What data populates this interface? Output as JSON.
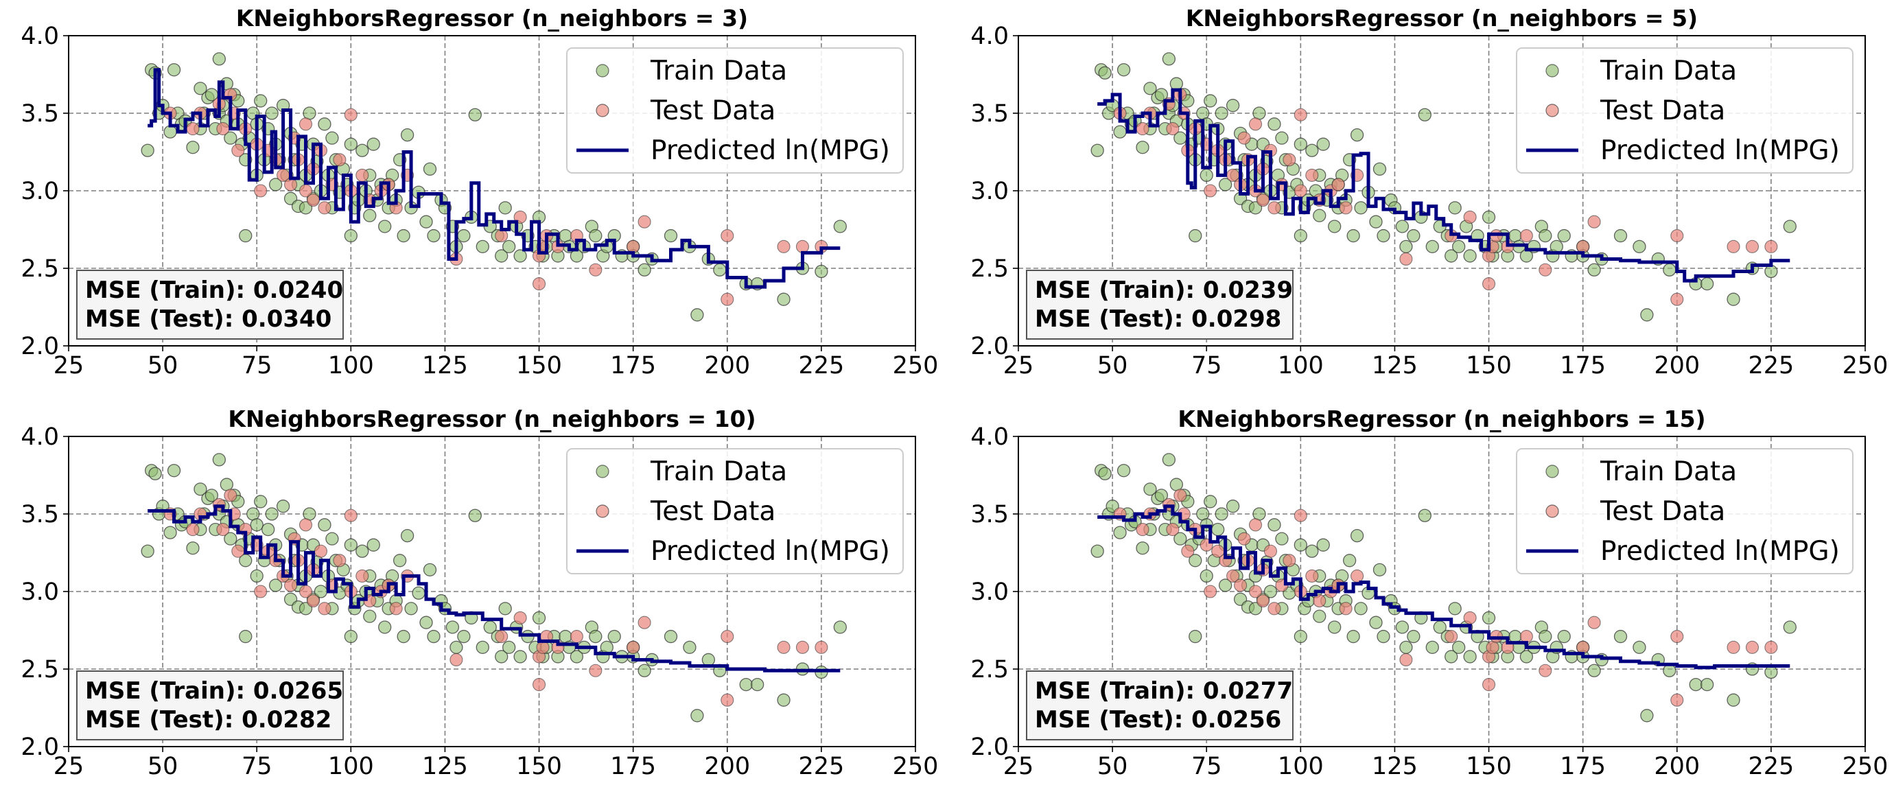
{
  "colors": {
    "train": "#8fbc6f",
    "test": "#e8857a",
    "prediction": "#000080",
    "grid": "#7f7f7f"
  },
  "legend_labels": {
    "train": "Train Data",
    "test": "Test Data",
    "prediction": "Predicted ln(MPG)"
  },
  "shared": {
    "type": "scatter+line",
    "xlim": [
      25,
      250
    ],
    "ylim": [
      2.0,
      4.0
    ],
    "xticks": [
      "25",
      "50",
      "75",
      "100",
      "125",
      "150",
      "175",
      "200",
      "225",
      "250"
    ],
    "yticks": [
      "2.0",
      "2.5",
      "3.0",
      "3.5",
      "4.0"
    ],
    "grid": true,
    "grid_style": "dashed",
    "legend_position": "top-right",
    "stats_position": "bottom-left"
  },
  "train_points": [
    [
      46,
      3.26
    ],
    [
      47,
      3.78
    ],
    [
      48,
      3.76
    ],
    [
      49,
      3.5
    ],
    [
      50,
      3.55
    ],
    [
      52,
      3.38
    ],
    [
      53,
      3.78
    ],
    [
      54,
      3.5
    ],
    [
      55,
      3.43
    ],
    [
      56,
      3.45
    ],
    [
      58,
      3.28
    ],
    [
      60,
      3.66
    ],
    [
      60,
      3.4
    ],
    [
      61,
      3.5
    ],
    [
      62,
      3.6
    ],
    [
      63,
      3.62
    ],
    [
      64,
      3.4
    ],
    [
      65,
      3.85
    ],
    [
      65,
      3.5
    ],
    [
      66,
      3.55
    ],
    [
      67,
      3.69
    ],
    [
      67,
      3.45
    ],
    [
      68,
      3.34
    ],
    [
      69,
      3.62
    ],
    [
      70,
      3.58
    ],
    [
      70,
      3.43
    ],
    [
      71,
      3.3
    ],
    [
      72,
      3.2
    ],
    [
      72,
      2.71
    ],
    [
      73,
      3.34
    ],
    [
      74,
      3.5
    ],
    [
      75,
      3.43
    ],
    [
      75,
      3.1
    ],
    [
      76,
      3.58
    ],
    [
      77,
      3.2
    ],
    [
      78,
      3.4
    ],
    [
      79,
      3.5
    ],
    [
      80,
      3.3
    ],
    [
      80,
      3.04
    ],
    [
      81,
      3.2
    ],
    [
      82,
      3.55
    ],
    [
      83,
      3.1
    ],
    [
      84,
      3.37
    ],
    [
      84,
      2.95
    ],
    [
      85,
      3.2
    ],
    [
      86,
      3.04
    ],
    [
      86,
      2.9
    ],
    [
      87,
      3.3
    ],
    [
      88,
      3.1
    ],
    [
      88,
      2.89
    ],
    [
      89,
      3.5
    ],
    [
      90,
      3.3
    ],
    [
      90,
      2.95
    ],
    [
      91,
      3.19
    ],
    [
      92,
      3.0
    ],
    [
      93,
      3.43
    ],
    [
      94,
      3.1
    ],
    [
      95,
      3.34
    ],
    [
      95,
      2.89
    ],
    [
      96,
      3.2
    ],
    [
      97,
      2.99
    ],
    [
      98,
      3.14
    ],
    [
      99,
      3.04
    ],
    [
      100,
      2.71
    ],
    [
      100,
      3.3
    ],
    [
      101,
      2.89
    ],
    [
      102,
      2.94
    ],
    [
      103,
      3.26
    ],
    [
      104,
      3.0
    ],
    [
      105,
      3.1
    ],
    [
      105,
      2.84
    ],
    [
      106,
      3.3
    ],
    [
      107,
      2.94
    ],
    [
      108,
      3.04
    ],
    [
      109,
      2.77
    ],
    [
      110,
      3.04
    ],
    [
      110,
      2.89
    ],
    [
      111,
      3.1
    ],
    [
      112,
      2.94
    ],
    [
      113,
      3.2
    ],
    [
      114,
      2.71
    ],
    [
      115,
      3.36
    ],
    [
      116,
      2.89
    ],
    [
      118,
      2.99
    ],
    [
      120,
      2.8
    ],
    [
      121,
      3.14
    ],
    [
      122,
      2.71
    ],
    [
      124,
      2.94
    ],
    [
      125,
      2.89
    ],
    [
      127,
      2.77
    ],
    [
      128,
      2.64
    ],
    [
      130,
      2.71
    ],
    [
      132,
      2.83
    ],
    [
      133,
      3.49
    ],
    [
      135,
      2.64
    ],
    [
      137,
      2.77
    ],
    [
      139,
      2.71
    ],
    [
      140,
      2.58
    ],
    [
      141,
      2.89
    ],
    [
      142,
      2.64
    ],
    [
      144,
      2.77
    ],
    [
      145,
      2.58
    ],
    [
      147,
      2.71
    ],
    [
      149,
      2.64
    ],
    [
      150,
      2.83
    ],
    [
      151,
      2.58
    ],
    [
      152,
      2.64
    ],
    [
      154,
      2.71
    ],
    [
      155,
      2.58
    ],
    [
      157,
      2.71
    ],
    [
      158,
      2.64
    ],
    [
      160,
      2.58
    ],
    [
      162,
      2.64
    ],
    [
      164,
      2.77
    ],
    [
      165,
      2.71
    ],
    [
      167,
      2.58
    ],
    [
      168,
      2.64
    ],
    [
      170,
      2.71
    ],
    [
      172,
      2.58
    ],
    [
      175,
      2.64
    ],
    [
      175,
      2.58
    ],
    [
      178,
      2.49
    ],
    [
      180,
      2.56
    ],
    [
      185,
      2.71
    ],
    [
      190,
      2.64
    ],
    [
      192,
      2.2
    ],
    [
      195,
      2.56
    ],
    [
      198,
      2.49
    ],
    [
      205,
      2.4
    ],
    [
      208,
      2.4
    ],
    [
      215,
      2.3
    ],
    [
      220,
      2.5
    ],
    [
      225,
      2.48
    ],
    [
      230,
      2.77
    ]
  ],
  "test_points": [
    [
      52,
      3.5
    ],
    [
      58,
      3.4
    ],
    [
      60,
      3.5
    ],
    [
      65,
      3.56
    ],
    [
      66,
      3.4
    ],
    [
      68,
      3.62
    ],
    [
      69,
      3.5
    ],
    [
      70,
      3.26
    ],
    [
      72,
      3.4
    ],
    [
      75,
      3.3
    ],
    [
      76,
      3.0
    ],
    [
      78,
      3.26
    ],
    [
      80,
      3.2
    ],
    [
      82,
      3.1
    ],
    [
      84,
      3.04
    ],
    [
      85,
      3.34
    ],
    [
      86,
      3.2
    ],
    [
      88,
      3.43
    ],
    [
      88,
      3.0
    ],
    [
      90,
      3.14
    ],
    [
      90,
      2.94
    ],
    [
      92,
      3.26
    ],
    [
      93,
      2.89
    ],
    [
      95,
      3.04
    ],
    [
      97,
      3.2
    ],
    [
      100,
      3.49
    ],
    [
      100,
      3.0
    ],
    [
      103,
      3.1
    ],
    [
      105,
      2.94
    ],
    [
      108,
      3.0
    ],
    [
      110,
      3.04
    ],
    [
      112,
      2.89
    ],
    [
      115,
      3.1
    ],
    [
      128,
      2.56
    ],
    [
      140,
      2.71
    ],
    [
      145,
      2.83
    ],
    [
      150,
      2.4
    ],
    [
      150,
      2.58
    ],
    [
      151,
      2.64
    ],
    [
      152,
      2.71
    ],
    [
      155,
      2.64
    ],
    [
      160,
      2.71
    ],
    [
      165,
      2.49
    ],
    [
      175,
      2.64
    ],
    [
      178,
      2.8
    ],
    [
      200,
      2.3
    ],
    [
      200,
      2.71
    ],
    [
      215,
      2.64
    ],
    [
      220,
      2.64
    ],
    [
      225,
      2.64
    ]
  ],
  "chart_data": [
    {
      "type": "scatter+line",
      "title": "KNeighborsRegressor (n_neighbors = 3)",
      "series": [
        {
          "name": "Train Data"
        },
        {
          "name": "Test Data"
        },
        {
          "name": "Predicted ln(MPG)",
          "x": [
            46,
            47,
            48,
            49,
            50,
            52,
            54,
            56,
            58,
            60,
            62,
            64,
            65,
            66,
            68,
            70,
            72,
            73,
            75,
            77,
            79,
            80,
            82,
            84,
            86,
            88,
            90,
            92,
            94,
            96,
            98,
            100,
            102,
            104,
            106,
            108,
            110,
            112,
            114,
            116,
            118,
            120,
            122,
            124,
            126,
            128,
            130,
            132,
            134,
            136,
            138,
            140,
            142,
            144,
            146,
            148,
            150,
            152,
            155,
            158,
            160,
            162,
            165,
            168,
            170,
            175,
            180,
            185,
            188,
            190,
            195,
            200,
            205,
            210,
            215,
            220,
            225,
            230
          ],
          "values": [
            3.42,
            3.45,
            3.78,
            3.55,
            3.5,
            3.42,
            3.38,
            3.46,
            3.5,
            3.42,
            3.52,
            3.48,
            3.7,
            3.6,
            3.4,
            3.52,
            3.3,
            3.07,
            3.48,
            3.12,
            3.38,
            3.15,
            3.52,
            3.08,
            3.35,
            3.05,
            3.3,
            2.95,
            3.15,
            2.88,
            3.1,
            2.8,
            3.05,
            2.9,
            2.95,
            3.05,
            2.92,
            3.0,
            3.25,
            2.9,
            2.98,
            2.98,
            2.98,
            2.92,
            2.56,
            2.8,
            2.82,
            3.05,
            2.78,
            2.85,
            2.8,
            2.75,
            2.8,
            2.72,
            2.62,
            2.8,
            2.6,
            2.72,
            2.65,
            2.62,
            2.68,
            2.62,
            2.65,
            2.68,
            2.6,
            2.58,
            2.55,
            2.62,
            2.68,
            2.64,
            2.54,
            2.44,
            2.38,
            2.42,
            2.5,
            2.6,
            2.63,
            2.63
          ]
        }
      ],
      "stats": [
        "MSE (Train): 0.0240",
        "MSE (Test): 0.0340"
      ]
    },
    {
      "type": "scatter+line",
      "title": "KNeighborsRegressor (n_neighbors = 5)",
      "series": [
        {
          "name": "Train Data"
        },
        {
          "name": "Test Data"
        },
        {
          "name": "Predicted ln(MPG)",
          "x": [
            46,
            48,
            50,
            52,
            54,
            56,
            58,
            60,
            62,
            64,
            66,
            68,
            70,
            71,
            72,
            74,
            76,
            78,
            80,
            82,
            84,
            86,
            88,
            90,
            92,
            94,
            96,
            98,
            100,
            102,
            104,
            106,
            108,
            110,
            112,
            114,
            116,
            118,
            120,
            122,
            125,
            128,
            130,
            132,
            134,
            136,
            138,
            140,
            142,
            145,
            148,
            150,
            155,
            160,
            165,
            170,
            175,
            180,
            185,
            190,
            195,
            200,
            202,
            205,
            210,
            215,
            220,
            225,
            230
          ],
          "values": [
            3.56,
            3.58,
            3.62,
            3.45,
            3.38,
            3.48,
            3.5,
            3.42,
            3.5,
            3.58,
            3.65,
            3.5,
            3.05,
            3.02,
            3.45,
            3.15,
            3.42,
            3.1,
            3.32,
            3.18,
            2.98,
            3.22,
            3.0,
            3.25,
            2.95,
            3.05,
            2.85,
            2.95,
            2.86,
            2.95,
            2.92,
            3.0,
            2.9,
            2.95,
            3.0,
            3.23,
            3.24,
            2.9,
            2.95,
            2.88,
            2.86,
            2.82,
            2.92,
            2.85,
            2.9,
            2.82,
            2.78,
            2.72,
            2.7,
            2.68,
            2.62,
            2.72,
            2.65,
            2.62,
            2.6,
            2.6,
            2.58,
            2.56,
            2.55,
            2.54,
            2.54,
            2.48,
            2.42,
            2.45,
            2.45,
            2.48,
            2.52,
            2.55,
            2.55
          ]
        }
      ],
      "stats": [
        "MSE (Train): 0.0239",
        "MSE (Test): 0.0298"
      ]
    },
    {
      "type": "scatter+line",
      "title": "KNeighborsRegressor (n_neighbors = 10)",
      "series": [
        {
          "name": "Train Data"
        },
        {
          "name": "Test Data"
        },
        {
          "name": "Predicted ln(MPG)",
          "x": [
            46,
            50,
            53,
            56,
            58,
            60,
            62,
            64,
            66,
            68,
            70,
            72,
            74,
            76,
            78,
            80,
            82,
            84,
            86,
            88,
            90,
            92,
            94,
            96,
            98,
            100,
            102,
            104,
            106,
            108,
            110,
            112,
            114,
            116,
            118,
            120,
            122,
            124,
            126,
            128,
            130,
            135,
            140,
            145,
            150,
            155,
            160,
            165,
            170,
            175,
            180,
            185,
            190,
            195,
            200,
            210,
            220,
            230
          ],
          "values": [
            3.52,
            3.52,
            3.45,
            3.48,
            3.45,
            3.48,
            3.5,
            3.55,
            3.52,
            3.42,
            3.38,
            3.25,
            3.35,
            3.22,
            3.3,
            3.2,
            3.1,
            3.32,
            3.05,
            3.25,
            3.1,
            3.2,
            3.0,
            3.08,
            3.05,
            2.9,
            2.95,
            3.02,
            2.98,
            3.0,
            3.05,
            2.98,
            3.1,
            3.1,
            3.05,
            2.95,
            2.92,
            2.88,
            2.86,
            2.85,
            2.86,
            2.82,
            2.76,
            2.72,
            2.68,
            2.66,
            2.64,
            2.6,
            2.58,
            2.56,
            2.55,
            2.54,
            2.52,
            2.52,
            2.5,
            2.49,
            2.49,
            2.49
          ]
        }
      ],
      "stats": [
        "MSE (Train): 0.0265",
        "MSE (Test): 0.0282"
      ]
    },
    {
      "type": "scatter+line",
      "title": "KNeighborsRegressor (n_neighbors = 15)",
      "series": [
        {
          "name": "Train Data"
        },
        {
          "name": "Test Data"
        },
        {
          "name": "Predicted ln(MPG)",
          "x": [
            46,
            50,
            53,
            56,
            58,
            60,
            62,
            64,
            66,
            68,
            70,
            72,
            74,
            76,
            78,
            80,
            82,
            84,
            86,
            88,
            90,
            92,
            94,
            96,
            98,
            100,
            102,
            104,
            106,
            108,
            110,
            112,
            114,
            116,
            118,
            120,
            122,
            124,
            126,
            128,
            130,
            135,
            140,
            145,
            150,
            155,
            160,
            165,
            170,
            175,
            180,
            185,
            190,
            195,
            200,
            205,
            210,
            220,
            230
          ],
          "values": [
            3.48,
            3.48,
            3.46,
            3.5,
            3.48,
            3.5,
            3.52,
            3.55,
            3.5,
            3.45,
            3.4,
            3.35,
            3.42,
            3.32,
            3.35,
            3.22,
            3.28,
            3.15,
            3.25,
            3.12,
            3.2,
            3.1,
            3.15,
            3.05,
            3.08,
            2.95,
            2.98,
            3.0,
            3.02,
            3.0,
            3.05,
            3.0,
            3.05,
            3.06,
            3.02,
            2.96,
            2.92,
            2.9,
            2.88,
            2.86,
            2.86,
            2.82,
            2.78,
            2.74,
            2.7,
            2.67,
            2.64,
            2.62,
            2.6,
            2.58,
            2.57,
            2.55,
            2.54,
            2.53,
            2.52,
            2.51,
            2.52,
            2.52,
            2.52
          ]
        }
      ],
      "stats": [
        "MSE (Train): 0.0277",
        "MSE (Test): 0.0256"
      ]
    }
  ]
}
